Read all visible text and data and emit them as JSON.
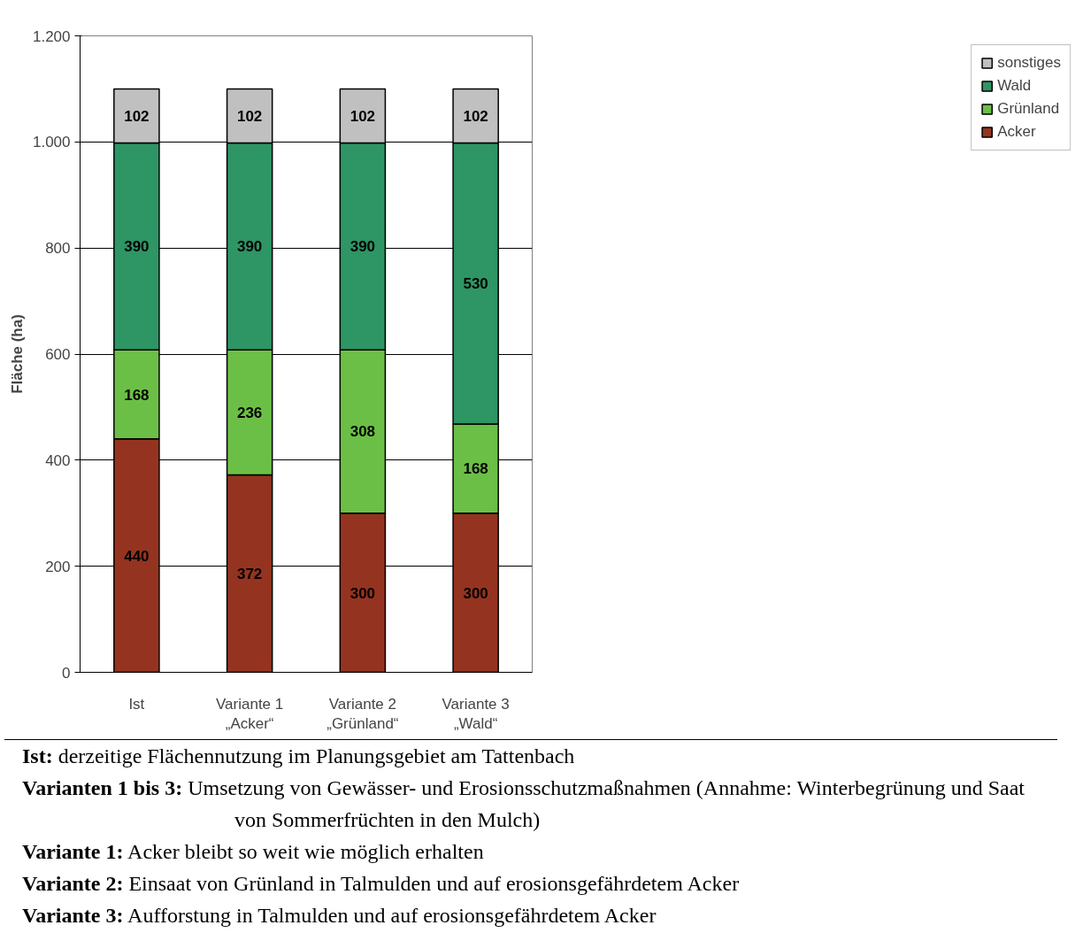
{
  "chart_data": {
    "type": "bar",
    "stacked": true,
    "ylabel": "Fläche (ha)",
    "categories": [
      "Ist",
      "Variante 1\n„Acker“",
      "Variante 2\n„Grünland“",
      "Variante 3\n„Wald“"
    ],
    "series": [
      {
        "name": "Acker",
        "color": "#943420",
        "values": [
          440,
          372,
          300,
          300
        ]
      },
      {
        "name": "Grünland",
        "color": "#6cbf46",
        "values": [
          168,
          236,
          308,
          168
        ]
      },
      {
        "name": "Wald",
        "color": "#2e9565",
        "values": [
          390,
          390,
          390,
          530
        ]
      },
      {
        "name": "sonstiges",
        "color": "#c0c0c0",
        "values": [
          102,
          102,
          102,
          102
        ]
      }
    ],
    "ylim": [
      0,
      1200
    ],
    "yticks": [
      0,
      {
        "value": 200,
        "label": "200"
      },
      {
        "value": 400,
        "label": "400"
      },
      {
        "value": 600,
        "label": "600"
      },
      {
        "value": 800,
        "label": "800"
      },
      {
        "value": 1000,
        "label": "1.000"
      },
      {
        "value": 1200,
        "label": "1.200"
      }
    ],
    "grid": "y",
    "legend": "right",
    "data_labels": true,
    "annotations": [
      "Ist: derzeitige Flächennutzung im Planungsgebiet am Tattenbach",
      "Varianten 1 bis 3: Umsetzung von Gewässer- und Erosionsschutzmaßnahmen (Annahme: Winterbegrünung und Saat von Sommerfrüchten in den Mulch)",
      "Variante 1: Acker bleibt so weit wie möglich erhalten",
      "Variante 2: Einsaat von Grünland in Talmulden und auf erosionsgefährdetem Acker",
      "Variante 3: Aufforstung in Talmulden und auf erosionsgefährdetem Acker"
    ]
  }
}
